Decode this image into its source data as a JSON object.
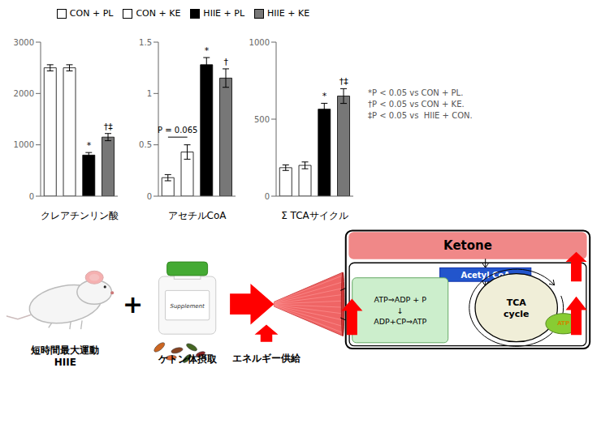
{
  "chart_data": [
    {
      "type": "bar",
      "x_label": "クレアチンリン酸",
      "categories": [
        null
      ],
      "ylim": [
        0,
        3000
      ],
      "yticks": [
        0,
        1000,
        2000,
        3000
      ],
      "tick_labels": "y",
      "series": [
        {
          "name": "CON + PL",
          "color": "white",
          "values": [
            2500
          ],
          "errors": [
            60
          ]
        },
        {
          "name": "CON + KE",
          "color": "white",
          "values": [
            2500
          ],
          "errors": [
            60
          ]
        },
        {
          "name": "HIIE + PL",
          "color": "black",
          "values": [
            800
          ],
          "errors": [
            50
          ],
          "annotation": "*"
        },
        {
          "name": "HIIE + KE",
          "color": "#777777",
          "values": [
            1150
          ],
          "errors": [
            70
          ],
          "annotation": "†‡"
        }
      ]
    },
    {
      "type": "bar",
      "x_label": "アセチルCoA",
      "categories": [
        null
      ],
      "ylim": [
        0,
        1.5
      ],
      "yticks": [
        0,
        0.5,
        1,
        1.5
      ],
      "tick_labels": "y",
      "series": [
        {
          "name": "CON + PL",
          "color": "white",
          "values": [
            0.18
          ],
          "errors": [
            0.03
          ]
        },
        {
          "name": "CON + KE",
          "color": "white",
          "values": [
            0.43
          ],
          "errors": [
            0.07
          ]
        },
        {
          "name": "HIIE + PL",
          "color": "black",
          "values": [
            1.28
          ],
          "errors": [
            0.07
          ],
          "annotation": "*"
        },
        {
          "name": "HIIE + KE",
          "color": "#777777",
          "values": [
            1.15
          ],
          "errors": [
            0.09
          ],
          "annotation": "†"
        }
      ],
      "annotations": [
        {
          "text": "P = 0.065",
          "from": "CON + PL",
          "to": "CON + KE"
        }
      ]
    },
    {
      "type": "bar",
      "x_label": "Σ TCAサイクル",
      "categories": [
        null
      ],
      "ylim": [
        0,
        1000
      ],
      "yticks": [
        0,
        500,
        1000
      ],
      "tick_labels": "y",
      "series": [
        {
          "name": "CON + PL",
          "color": "white",
          "values": [
            185
          ],
          "errors": [
            18
          ]
        },
        {
          "name": "CON + KE",
          "color": "white",
          "values": [
            200
          ],
          "errors": [
            22
          ]
        },
        {
          "name": "HIIE + PL",
          "color": "black",
          "values": [
            565
          ],
          "errors": [
            38
          ],
          "annotation": "*"
        },
        {
          "name": "HIIE + KE",
          "color": "#777777",
          "values": [
            650
          ],
          "errors": [
            48
          ],
          "annotation": "†‡"
        }
      ]
    }
  ],
  "annotations": [
    "*P < 0.05 vs CON + PL.",
    "†P < 0.05 vs CON + KE.",
    "‡P < 0.05 vs  HIIE + CON."
  ],
  "diagram": {
    "labels": [
      "短時間最大運動\nHIIE",
      "ケトン体摂取",
      "エネルギー供給"
    ],
    "plus": "+",
    "supplement": "Supplement",
    "title": "Ketone",
    "acetyl": "Acetyl CoA",
    "box1": "ATP⇒ADP + P\n↓\nADP+CP⇒ATP",
    "box2": "TCA\ncycle",
    "mito": "ATP"
  }
}
